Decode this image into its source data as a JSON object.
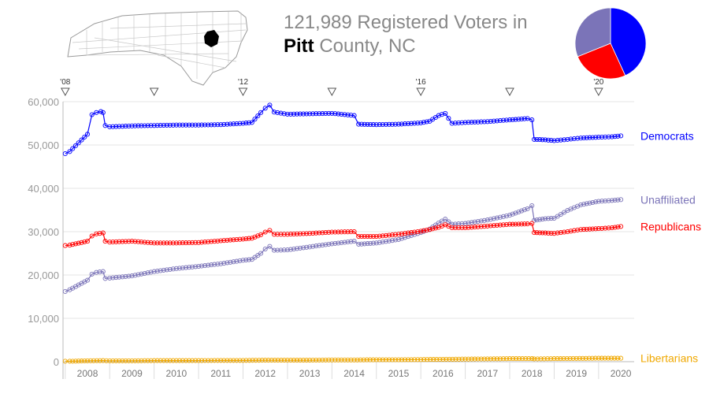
{
  "header": {
    "title_line1": "121,989 Registered Voters in",
    "county": "Pitt",
    "title_rest": "County, NC"
  },
  "election_markers": [
    {
      "year": 2008.0,
      "label": "'08"
    },
    {
      "year": 2010.0,
      "label": ""
    },
    {
      "year": 2012.0,
      "label": "'12"
    },
    {
      "year": 2014.0,
      "label": ""
    },
    {
      "year": 2016.0,
      "label": "'16"
    },
    {
      "year": 2018.0,
      "label": ""
    },
    {
      "year": 2020.0,
      "label": "'20"
    }
  ],
  "pie": {
    "slices": [
      {
        "name": "Democrats",
        "value": 52000,
        "color": "#0000ff"
      },
      {
        "name": "Republicans",
        "value": 31000,
        "color": "#ff0000"
      },
      {
        "name": "Unaffiliated",
        "value": 37500,
        "color": "#7b74b8"
      }
    ]
  },
  "chart_data": {
    "type": "line",
    "title": "121,989 Registered Voters in Pitt County, NC",
    "xlabel": "",
    "ylabel": "",
    "xlim": [
      2007.95,
      2020.8
    ],
    "ylim": [
      0,
      60000
    ],
    "yticks": [
      0,
      10000,
      20000,
      30000,
      40000,
      50000,
      60000
    ],
    "ytick_labels": [
      "0",
      "10,000",
      "20,000",
      "30,000",
      "40,000",
      "50,000",
      "60,000"
    ],
    "xtick_labels": [
      {
        "label": "2008",
        "at": 2008.5
      },
      {
        "label": "2009",
        "at": 2009.5
      },
      {
        "label": "2010",
        "at": 2010.5
      },
      {
        "label": "2011",
        "at": 2011.5
      },
      {
        "label": "2012",
        "at": 2012.5
      },
      {
        "label": "2013",
        "at": 2013.5
      },
      {
        "label": "2014",
        "at": 2014.5
      },
      {
        "label": "2015",
        "at": 2015.5
      },
      {
        "label": "2016",
        "at": 2016.5
      },
      {
        "label": "2017",
        "at": 2017.5
      },
      {
        "label": "2018",
        "at": 2018.5
      },
      {
        "label": "2019",
        "at": 2019.5
      },
      {
        "label": "2020",
        "at": 2020.5
      }
    ],
    "grid": "horizontal",
    "legend": "right, end-of-line labels",
    "series": [
      {
        "name": "Democrats",
        "color": "#0000ff",
        "points": [
          [
            2008.0,
            48000
          ],
          [
            2008.1,
            48500
          ],
          [
            2008.5,
            52500
          ],
          [
            2008.6,
            57000
          ],
          [
            2008.7,
            57500
          ],
          [
            2008.8,
            57700
          ],
          [
            2008.85,
            57500
          ],
          [
            2008.9,
            54500
          ],
          [
            2009.0,
            54200
          ],
          [
            2009.5,
            54400
          ],
          [
            2010.0,
            54500
          ],
          [
            2010.5,
            54600
          ],
          [
            2011.0,
            54600
          ],
          [
            2011.5,
            54700
          ],
          [
            2012.0,
            55000
          ],
          [
            2012.2,
            55200
          ],
          [
            2012.4,
            57500
          ],
          [
            2012.5,
            58500
          ],
          [
            2012.6,
            59200
          ],
          [
            2012.7,
            57600
          ],
          [
            2013.0,
            57100
          ],
          [
            2013.5,
            57200
          ],
          [
            2014.0,
            57300
          ],
          [
            2014.5,
            56800
          ],
          [
            2014.6,
            54800
          ],
          [
            2015.0,
            54700
          ],
          [
            2015.5,
            54800
          ],
          [
            2016.0,
            55100
          ],
          [
            2016.2,
            55500
          ],
          [
            2016.4,
            56800
          ],
          [
            2016.55,
            57300
          ],
          [
            2016.7,
            55000
          ],
          [
            2017.0,
            55200
          ],
          [
            2017.5,
            55400
          ],
          [
            2018.0,
            55800
          ],
          [
            2018.4,
            56100
          ],
          [
            2018.5,
            55800
          ],
          [
            2018.55,
            51300
          ],
          [
            2018.8,
            51200
          ],
          [
            2019.0,
            51000
          ],
          [
            2019.3,
            51300
          ],
          [
            2019.6,
            51600
          ],
          [
            2020.0,
            51800
          ],
          [
            2020.3,
            51900
          ],
          [
            2020.5,
            52100
          ]
        ]
      },
      {
        "name": "Unaffiliated",
        "color": "#7b74b8",
        "points": [
          [
            2008.0,
            16200
          ],
          [
            2008.1,
            16600
          ],
          [
            2008.5,
            18800
          ],
          [
            2008.6,
            20200
          ],
          [
            2008.7,
            20600
          ],
          [
            2008.85,
            20800
          ],
          [
            2008.9,
            19200
          ],
          [
            2009.0,
            19300
          ],
          [
            2009.5,
            19800
          ],
          [
            2010.0,
            20800
          ],
          [
            2010.5,
            21500
          ],
          [
            2011.0,
            22000
          ],
          [
            2011.5,
            22600
          ],
          [
            2012.0,
            23400
          ],
          [
            2012.2,
            23600
          ],
          [
            2012.4,
            25000
          ],
          [
            2012.5,
            26000
          ],
          [
            2012.6,
            26600
          ],
          [
            2012.7,
            25700
          ],
          [
            2013.0,
            25800
          ],
          [
            2013.5,
            26500
          ],
          [
            2014.0,
            27200
          ],
          [
            2014.5,
            27800
          ],
          [
            2014.6,
            27100
          ],
          [
            2015.0,
            27400
          ],
          [
            2015.5,
            28200
          ],
          [
            2016.0,
            29800
          ],
          [
            2016.2,
            30600
          ],
          [
            2016.4,
            32000
          ],
          [
            2016.55,
            32900
          ],
          [
            2016.7,
            31700
          ],
          [
            2017.0,
            31900
          ],
          [
            2017.5,
            32700
          ],
          [
            2018.0,
            33800
          ],
          [
            2018.4,
            35300
          ],
          [
            2018.5,
            36000
          ],
          [
            2018.55,
            32600
          ],
          [
            2018.8,
            33000
          ],
          [
            2019.0,
            33100
          ],
          [
            2019.3,
            34900
          ],
          [
            2019.6,
            36200
          ],
          [
            2020.0,
            37000
          ],
          [
            2020.3,
            37200
          ],
          [
            2020.5,
            37400
          ]
        ]
      },
      {
        "name": "Republicans",
        "color": "#ff0000",
        "points": [
          [
            2008.0,
            26800
          ],
          [
            2008.1,
            26900
          ],
          [
            2008.5,
            27800
          ],
          [
            2008.6,
            29000
          ],
          [
            2008.7,
            29500
          ],
          [
            2008.85,
            29700
          ],
          [
            2008.9,
            27800
          ],
          [
            2009.0,
            27600
          ],
          [
            2009.5,
            27800
          ],
          [
            2010.0,
            27400
          ],
          [
            2010.5,
            27400
          ],
          [
            2011.0,
            27500
          ],
          [
            2011.5,
            27900
          ],
          [
            2012.0,
            28300
          ],
          [
            2012.2,
            28500
          ],
          [
            2012.4,
            29300
          ],
          [
            2012.5,
            29900
          ],
          [
            2012.6,
            30300
          ],
          [
            2012.7,
            29400
          ],
          [
            2013.0,
            29400
          ],
          [
            2013.5,
            29600
          ],
          [
            2014.0,
            29900
          ],
          [
            2014.5,
            30000
          ],
          [
            2014.6,
            28900
          ],
          [
            2015.0,
            28900
          ],
          [
            2015.5,
            29400
          ],
          [
            2016.0,
            30100
          ],
          [
            2016.2,
            30500
          ],
          [
            2016.4,
            31000
          ],
          [
            2016.55,
            31600
          ],
          [
            2016.7,
            30900
          ],
          [
            2017.0,
            30900
          ],
          [
            2017.5,
            31300
          ],
          [
            2018.0,
            31700
          ],
          [
            2018.4,
            31800
          ],
          [
            2018.5,
            31900
          ],
          [
            2018.55,
            29800
          ],
          [
            2018.8,
            29700
          ],
          [
            2019.0,
            29600
          ],
          [
            2019.3,
            30000
          ],
          [
            2019.6,
            30500
          ],
          [
            2020.0,
            30700
          ],
          [
            2020.3,
            30900
          ],
          [
            2020.5,
            31200
          ]
        ]
      },
      {
        "name": "Libertarians",
        "color": "#f0a800",
        "points": [
          [
            2008.0,
            100
          ],
          [
            2008.1,
            100
          ],
          [
            2008.5,
            200
          ],
          [
            2008.85,
            250
          ],
          [
            2009.0,
            200
          ],
          [
            2009.5,
            200
          ],
          [
            2010.0,
            250
          ],
          [
            2010.5,
            250
          ],
          [
            2011.0,
            250
          ],
          [
            2011.5,
            300
          ],
          [
            2012.0,
            300
          ],
          [
            2012.5,
            350
          ],
          [
            2013.0,
            350
          ],
          [
            2013.5,
            350
          ],
          [
            2014.0,
            400
          ],
          [
            2014.5,
            400
          ],
          [
            2015.0,
            450
          ],
          [
            2015.5,
            450
          ],
          [
            2016.0,
            500
          ],
          [
            2016.5,
            550
          ],
          [
            2017.0,
            600
          ],
          [
            2017.5,
            650
          ],
          [
            2018.0,
            700
          ],
          [
            2018.5,
            700
          ],
          [
            2018.55,
            650
          ],
          [
            2019.0,
            700
          ],
          [
            2019.5,
            750
          ],
          [
            2020.0,
            800
          ],
          [
            2020.5,
            800
          ]
        ]
      }
    ]
  }
}
